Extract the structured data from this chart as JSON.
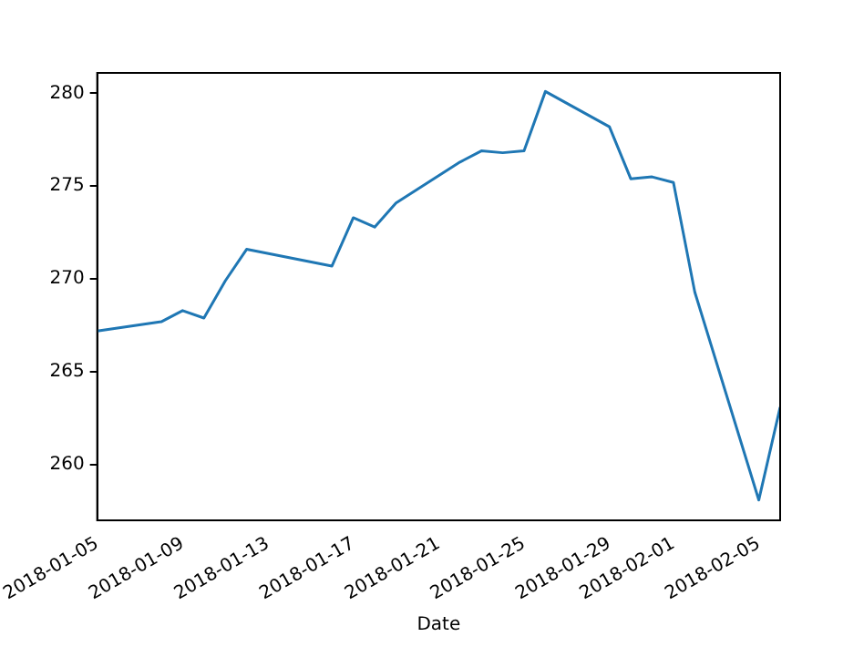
{
  "chart_data": {
    "type": "line",
    "xlabel": "Date",
    "x": [
      "2018-01-05",
      "2018-01-08",
      "2018-01-09",
      "2018-01-10",
      "2018-01-11",
      "2018-01-12",
      "2018-01-16",
      "2018-01-17",
      "2018-01-18",
      "2018-01-19",
      "2018-01-22",
      "2018-01-23",
      "2018-01-24",
      "2018-01-25",
      "2018-01-26",
      "2018-01-29",
      "2018-01-30",
      "2018-01-31",
      "2018-02-01",
      "2018-02-02",
      "2018-02-05",
      "2018-02-06"
    ],
    "series": [
      {
        "color": "#1f77b4",
        "values": [
          267.2,
          267.7,
          268.3,
          267.9,
          269.9,
          271.6,
          270.7,
          273.3,
          272.8,
          274.1,
          276.3,
          276.9,
          276.8,
          276.9,
          280.1,
          278.2,
          275.4,
          275.5,
          275.2,
          269.3,
          258.1,
          263.1
        ]
      }
    ],
    "xlim": [
      "2018-01-05",
      "2018-02-06"
    ],
    "xticks": [
      "2018-01-05",
      "2018-01-09",
      "2018-01-13",
      "2018-01-17",
      "2018-01-21",
      "2018-01-25",
      "2018-01-29",
      "2018-02-01",
      "2018-02-05"
    ],
    "ylim": [
      257.0,
      281.1
    ],
    "yticks": [
      260,
      265,
      270,
      275,
      280
    ],
    "grid": false,
    "legend": false,
    "marker": "none",
    "line_style": "solid"
  }
}
